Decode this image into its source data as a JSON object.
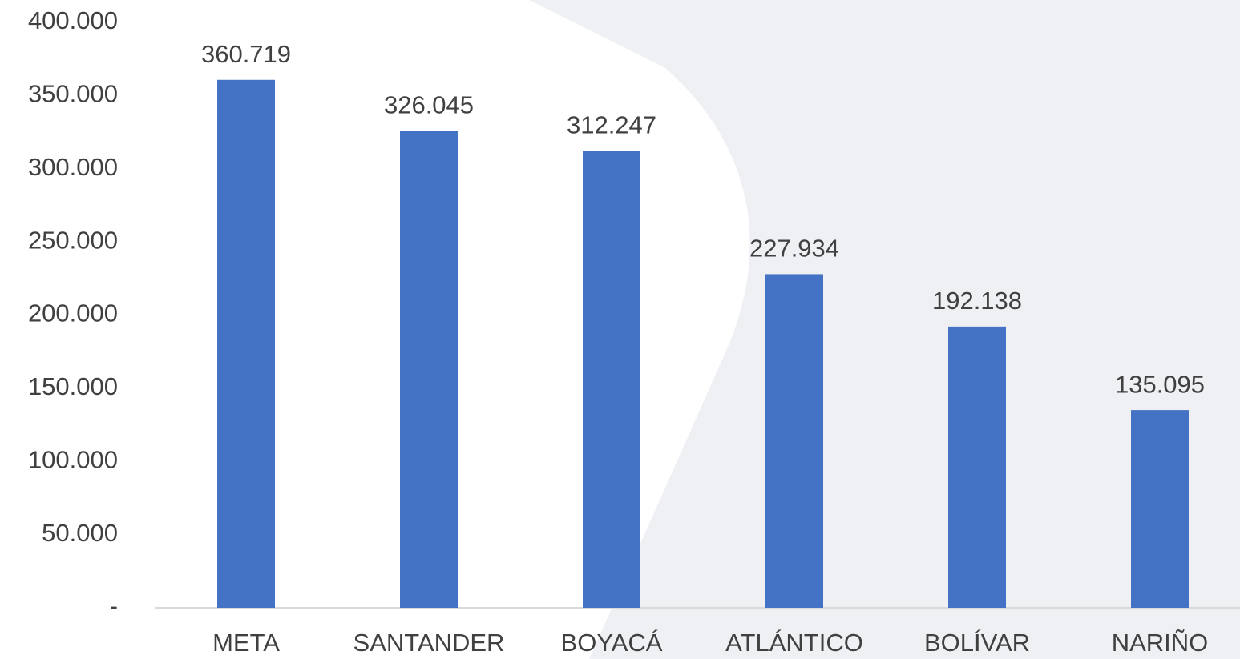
{
  "chart_data": {
    "type": "bar",
    "categories": [
      "META",
      "SANTANDER",
      "BOYACÁ",
      "ATLÁNTICO",
      "BOLÍVAR",
      "NARIÑO"
    ],
    "values": [
      360719,
      326045,
      312247,
      227934,
      192138,
      135095
    ],
    "value_labels": [
      "360.719",
      "326.045",
      "312.247",
      "227.934",
      "192.138",
      "135.095"
    ],
    "color": "#4472c4",
    "ylim": [
      0,
      400000
    ],
    "yticks": [
      {
        "value": 0,
        "label": "-"
      },
      {
        "value": 50000,
        "label": "50.000"
      },
      {
        "value": 100000,
        "label": "100.000"
      },
      {
        "value": 150000,
        "label": "150.000"
      },
      {
        "value": 200000,
        "label": "200.000"
      },
      {
        "value": 250000,
        "label": "250.000"
      },
      {
        "value": 300000,
        "label": "300.000"
      },
      {
        "value": 350000,
        "label": "350.000"
      },
      {
        "value": 400000,
        "label": "400.000"
      }
    ],
    "grid": false
  }
}
